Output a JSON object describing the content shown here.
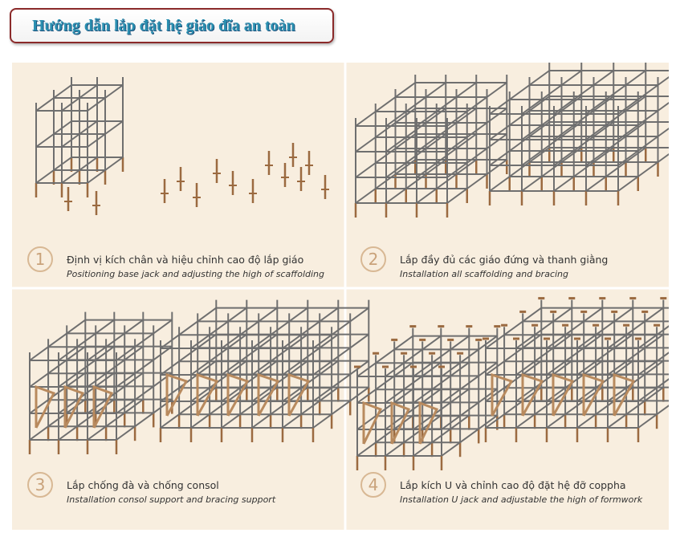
{
  "header": {
    "title": "Hướng dẫn lắp đặt hệ giáo đĩa an toàn"
  },
  "steps": [
    {
      "number": "1",
      "vi": "Định vị kích chân và hiệu chỉnh cao độ lắp giáo",
      "en": "Positioning base jack and adjusting the high of scaffolding"
    },
    {
      "number": "2",
      "vi": "Lắp đầy đủ các giáo đứng và thanh giằng",
      "en": "Installation all scaffolding and bracing"
    },
    {
      "number": "3",
      "vi": "Lắp chống đà và chống consol",
      "en": "Installation consol support and bracing support"
    },
    {
      "number": "4",
      "vi": "Lắp kích U và chỉnh cao độ đặt hệ đỡ coppha",
      "en": "Installation U jack and adjustable the high of formwork"
    }
  ]
}
